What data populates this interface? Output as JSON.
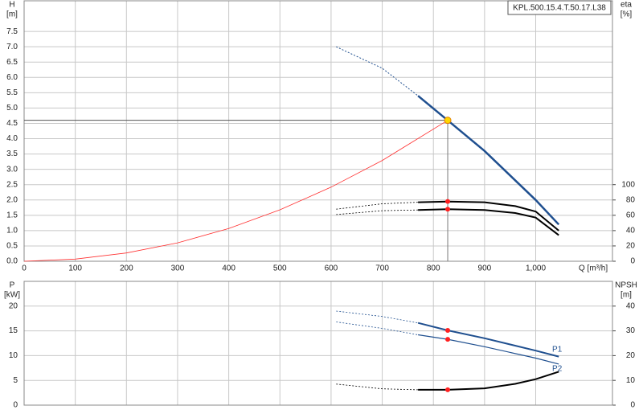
{
  "chart_data": [
    {
      "type": "line",
      "title": "KPL.500.15.4.T.50.17.L38",
      "xlabel": "Q [m³/h]",
      "ylabel": "H",
      "yunit": "[m]",
      "y2label": "eta",
      "y2unit": "[%]",
      "xlim": [
        0,
        1150
      ],
      "xticks": [
        0,
        100,
        200,
        300,
        400,
        500,
        600,
        700,
        800,
        900,
        {
          "value": 1000,
          "label": "1,000"
        }
      ],
      "show_xtick_labels": true,
      "ylim": [
        0,
        8.5
      ],
      "yticks": [
        {
          "value": 0,
          "label": "0.0"
        },
        0.5,
        {
          "value": 1,
          "label": "1.0"
        },
        1.5,
        {
          "value": 2,
          "label": "2.0"
        },
        2.5,
        {
          "value": 3,
          "label": "3.0"
        },
        3.5,
        {
          "value": 4,
          "label": "4.0"
        },
        4.5,
        {
          "value": 5,
          "label": "5.0"
        },
        5.5,
        {
          "value": 6,
          "label": "6.0"
        },
        6.5,
        {
          "value": 7,
          "label": "7.0"
        },
        7.5
      ],
      "y2lim": [
        0,
        340
      ],
      "y2ticks": [
        0,
        20,
        40,
        60,
        80,
        100
      ],
      "grid": true,
      "duty_point": {
        "x": 828,
        "y": 4.6
      },
      "series": [
        {
          "color": "#ff3030",
          "line_width": 0.8,
          "dash": false,
          "x": [
            0,
            100,
            200,
            300,
            400,
            500,
            600,
            700,
            828
          ],
          "values": [
            0,
            0.07,
            0.27,
            0.6,
            1.07,
            1.68,
            2.42,
            3.29,
            4.6
          ]
        },
        {
          "color": "#1f4f8f",
          "line_width": 1,
          "dash": true,
          "x": [
            610,
            700,
            770
          ],
          "values": [
            7.0,
            6.3,
            5.4
          ]
        },
        {
          "color": "#1f4f8f",
          "line_width": 2.5,
          "dash": false,
          "x": [
            770,
            828,
            900,
            950,
            1000,
            1045
          ],
          "values": [
            5.4,
            4.6,
            3.6,
            2.8,
            2.0,
            1.2
          ]
        },
        {
          "color": "#000000",
          "line_width": 0.8,
          "dash": true,
          "axis": "y2",
          "x": [
            610,
            700,
            770
          ],
          "values": [
            68,
            75,
            77
          ]
        },
        {
          "color": "#000000",
          "line_width": 2,
          "dash": false,
          "axis": "y2",
          "x": [
            770,
            828,
            900,
            960,
            1000,
            1045
          ],
          "values": [
            77,
            78,
            77,
            72,
            65,
            40
          ]
        },
        {
          "color": "#000000",
          "line_width": 0.8,
          "dash": true,
          "axis": "y2",
          "x": [
            610,
            700,
            770
          ],
          "values": [
            61,
            66,
            67
          ]
        },
        {
          "color": "#000000",
          "line_width": 2,
          "dash": false,
          "axis": "y2",
          "x": [
            770,
            828,
            900,
            960,
            1000,
            1045
          ],
          "values": [
            67,
            68,
            67,
            63,
            57,
            34
          ]
        }
      ]
    },
    {
      "type": "line",
      "ylabel": "P",
      "yunit": "[kW]",
      "y2label": "NPSH",
      "y2unit": "[m]",
      "xlim": [
        0,
        1150
      ],
      "xticks": [
        0,
        100,
        200,
        300,
        400,
        500,
        600,
        700,
        800,
        900,
        1000
      ],
      "show_xtick_labels": false,
      "ylim": [
        0,
        25
      ],
      "yticks": [
        0,
        5,
        10,
        15,
        20
      ],
      "y2lim": [
        0,
        50
      ],
      "y2ticks": [
        0,
        10,
        20,
        30,
        40
      ],
      "grid": true,
      "duty_point": {
        "x": 828
      },
      "series": [
        {
          "color": "#1f4f8f",
          "line_width": 0.8,
          "dash": true,
          "x": [
            610,
            700,
            770
          ],
          "values": [
            19,
            17.9,
            16.6
          ]
        },
        {
          "name": "P1",
          "color": "#1f4f8f",
          "line_width": 2,
          "dash": false,
          "x": [
            770,
            828,
            900,
            1000,
            1045
          ],
          "values": [
            16.6,
            15.1,
            13.5,
            11.0,
            9.8
          ]
        },
        {
          "color": "#1f4f8f",
          "line_width": 0.8,
          "dash": true,
          "x": [
            610,
            700,
            770
          ],
          "values": [
            16.8,
            15.5,
            14.2
          ]
        },
        {
          "name": "P2",
          "color": "#1f4f8f",
          "line_width": 1.2,
          "dash": false,
          "x": [
            770,
            828,
            900,
            1000,
            1045
          ],
          "values": [
            14.2,
            13.3,
            11.8,
            9.5,
            8.3
          ]
        },
        {
          "color": "#000000",
          "line_width": 0.8,
          "dash": true,
          "axis": "y2",
          "x": [
            610,
            700,
            770
          ],
          "values": [
            8.5,
            6.6,
            6.2
          ]
        },
        {
          "color": "#000000",
          "line_width": 2,
          "dash": false,
          "axis": "y2",
          "x": [
            770,
            828,
            900,
            960,
            1000,
            1045
          ],
          "values": [
            6.2,
            6.2,
            6.8,
            8.6,
            10.5,
            13.5
          ]
        }
      ]
    }
  ]
}
